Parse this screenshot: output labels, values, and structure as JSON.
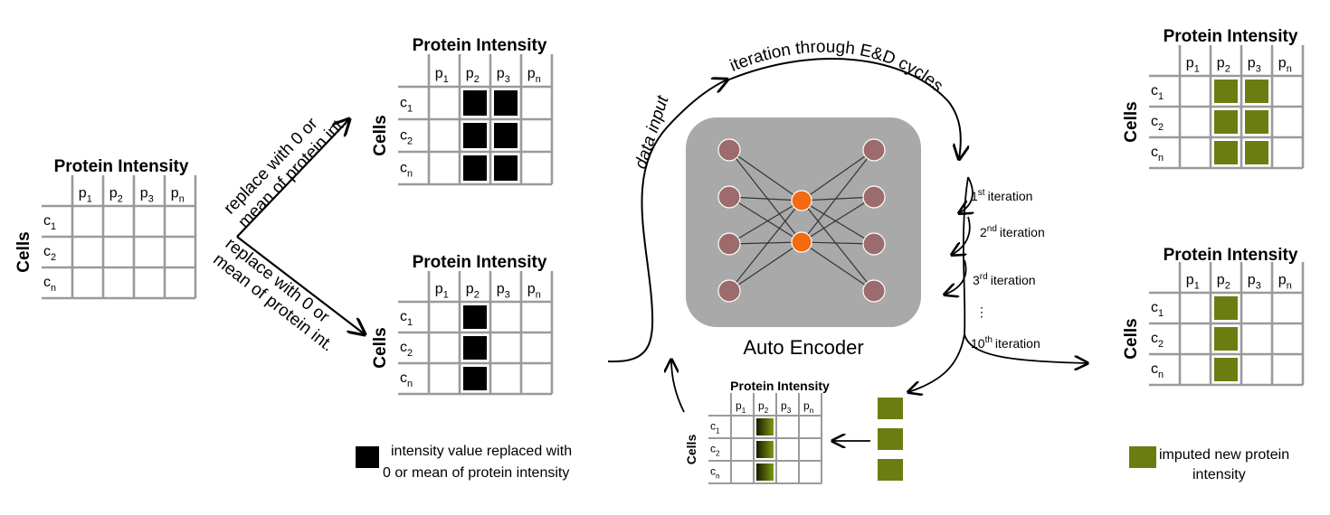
{
  "grid_labels": {
    "title": "Protein Intensity",
    "rows_axis": "Cells",
    "cols": [
      "p1",
      "p2",
      "p3",
      "pn"
    ],
    "rows": [
      "c1",
      "c2",
      "cn"
    ]
  },
  "arrows": {
    "replace_top_line1": "replace with 0 or",
    "replace_top_line2": "mean of protein int.",
    "replace_bottom_line1": "replace with 0 or",
    "replace_bottom_line2": "mean of protein int.",
    "data_input": "data input",
    "iteration_cycles": "iteration through E&D cycles"
  },
  "iterations": {
    "first_sup": "st",
    "first_num": "1",
    "first_label": "iteration",
    "second_sup": "nd",
    "second_num": "2",
    "second_label": "iteration",
    "third_sup": "rd",
    "third_num": "3",
    "third_label": "iteration",
    "ellipsis": "⋮",
    "tenth_sup": "th",
    "tenth_num": "10",
    "tenth_label": "iteration"
  },
  "autoencoder": {
    "label": "Auto Encoder"
  },
  "legend": {
    "replaced_line1": "intensity value replaced with",
    "replaced_line2": "0 or mean of protein intensity",
    "imputed_line1": "imputed new protein",
    "imputed_line2": "intensity"
  },
  "colors": {
    "grid_line": "#9a9a9a",
    "replaced_fill": "#000000",
    "imputed_fill": "#6b7d10",
    "node_fill": "#9c6b6b",
    "hidden_node_fill": "#f36a10",
    "ae_background": "#a9a9a9"
  }
}
